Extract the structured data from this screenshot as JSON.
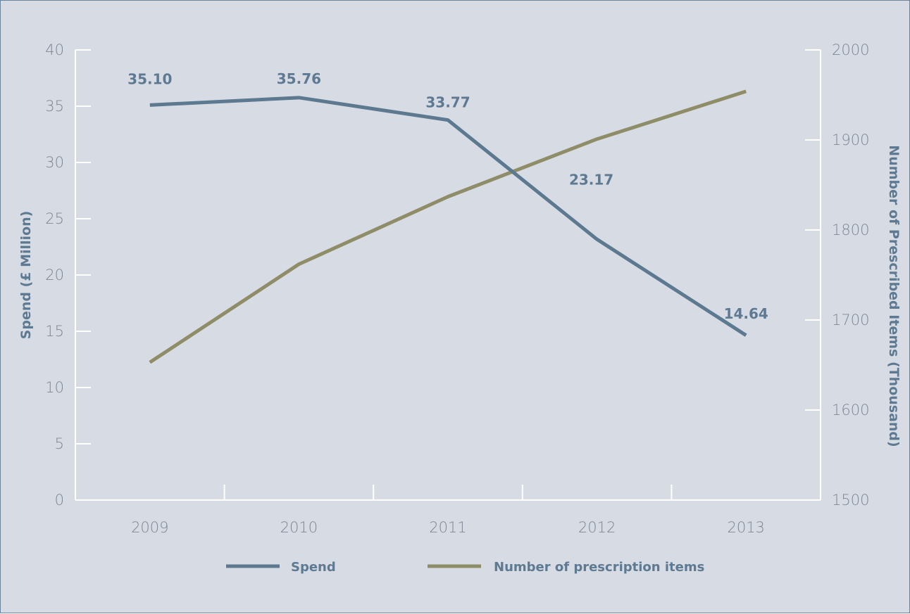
{
  "chart_data": {
    "type": "line",
    "title": "",
    "xlabel": "",
    "categories": [
      "2009",
      "2010",
      "2011",
      "2012",
      "2013"
    ],
    "y_left": {
      "label": "Spend (£ Million)",
      "range": [
        0,
        40
      ],
      "ticks": [
        "0",
        "5",
        "10",
        "15",
        "20",
        "25",
        "30",
        "35",
        "40"
      ]
    },
    "y_right": {
      "label": "Number of Prescribed Items (Thousand)",
      "range": [
        1500,
        2000
      ],
      "ticks": [
        "1500",
        "1600",
        "1700",
        "1800",
        "1900",
        "2000"
      ]
    },
    "series": [
      {
        "name": "Spend",
        "axis": "left",
        "color": "#5c7990",
        "values": [
          35.1,
          35.76,
          33.77,
          23.17,
          14.64
        ],
        "labels": [
          "35.10",
          "35.76",
          "33.77",
          "23.17",
          "14.64"
        ]
      },
      {
        "name": "Number of prescription items",
        "axis": "right",
        "color": "#8f8d67",
        "values": [
          1653,
          1762,
          1837,
          1901,
          1954
        ]
      }
    ],
    "grid": false,
    "legend_position": "bottom"
  }
}
